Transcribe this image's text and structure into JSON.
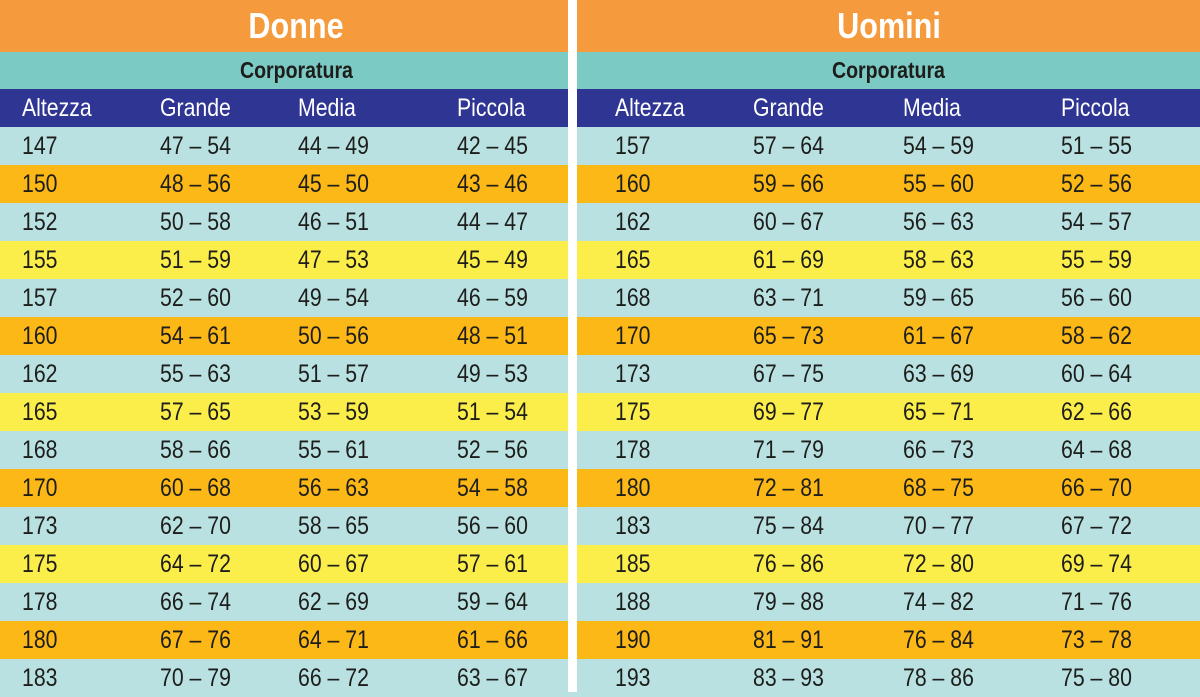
{
  "colors": {
    "title_bg": "#f59b3d",
    "subtitle_bg": "#7ccac4",
    "header_bg": "#2e3592",
    "row_teal": "#b9e1e1",
    "row_orange": "#fbb817",
    "row_yellow": "#fcee4a"
  },
  "chart_data": [
    {
      "type": "table",
      "title": "Donne",
      "subtitle": "Corporatura",
      "columns": [
        "Altezza",
        "Grande",
        "Media",
        "Piccola"
      ],
      "rows": [
        [
          "147",
          "47 – 54",
          "44 – 49",
          "42 – 45"
        ],
        [
          "150",
          "48 – 56",
          "45 – 50",
          "43 – 46"
        ],
        [
          "152",
          "50 – 58",
          "46 – 51",
          "44 – 47"
        ],
        [
          "155",
          "51 – 59",
          "47 – 53",
          "45 – 49"
        ],
        [
          "157",
          "52 – 60",
          "49 – 54",
          "46 – 59"
        ],
        [
          "160",
          "54 – 61",
          "50 – 56",
          "48 – 51"
        ],
        [
          "162",
          "55 – 63",
          "51 – 57",
          "49 – 53"
        ],
        [
          "165",
          "57 – 65",
          "53 – 59",
          "51 – 54"
        ],
        [
          "168",
          "58 – 66",
          "55 – 61",
          "52 – 56"
        ],
        [
          "170",
          "60 – 68",
          "56 – 63",
          "54 – 58"
        ],
        [
          "173",
          "62 – 70",
          "58 – 65",
          "56 – 60"
        ],
        [
          "175",
          "64 – 72",
          "60 – 67",
          "57 – 61"
        ],
        [
          "178",
          "66 – 74",
          "62 – 69",
          "59 – 64"
        ],
        [
          "180",
          "67 – 76",
          "64 – 71",
          "61 – 66"
        ],
        [
          "183",
          "70 – 79",
          "66 – 72",
          "63 – 67"
        ]
      ]
    },
    {
      "type": "table",
      "title": "Uomini",
      "subtitle": "Corporatura",
      "columns": [
        "Altezza",
        "Grande",
        "Media",
        "Piccola"
      ],
      "rows": [
        [
          "157",
          "57 – 64",
          "54 – 59",
          "51 – 55"
        ],
        [
          "160",
          "59 – 66",
          "55 – 60",
          "52 – 56"
        ],
        [
          "162",
          "60 – 67",
          "56 – 63",
          "54 – 57"
        ],
        [
          "165",
          "61 – 69",
          "58 – 63",
          "55 – 59"
        ],
        [
          "168",
          "63 – 71",
          "59 – 65",
          "56 – 60"
        ],
        [
          "170",
          "65 – 73",
          "61 – 67",
          "58 – 62"
        ],
        [
          "173",
          "67 – 75",
          "63 – 69",
          "60 – 64"
        ],
        [
          "175",
          "69 – 77",
          "65 – 71",
          "62 – 66"
        ],
        [
          "178",
          "71 – 79",
          "66 – 73",
          "64 – 68"
        ],
        [
          "180",
          "72 – 81",
          "68 – 75",
          "66 – 70"
        ],
        [
          "183",
          "75 – 84",
          "70 – 77",
          "67 – 72"
        ],
        [
          "185",
          "76 – 86",
          "72 – 80",
          "69 – 74"
        ],
        [
          "188",
          "79 – 88",
          "74 – 82",
          "71 – 76"
        ],
        [
          "190",
          "81 – 91",
          "76 – 84",
          "73 – 78"
        ],
        [
          "193",
          "83 – 93",
          "78 – 86",
          "75 – 80"
        ]
      ]
    }
  ]
}
